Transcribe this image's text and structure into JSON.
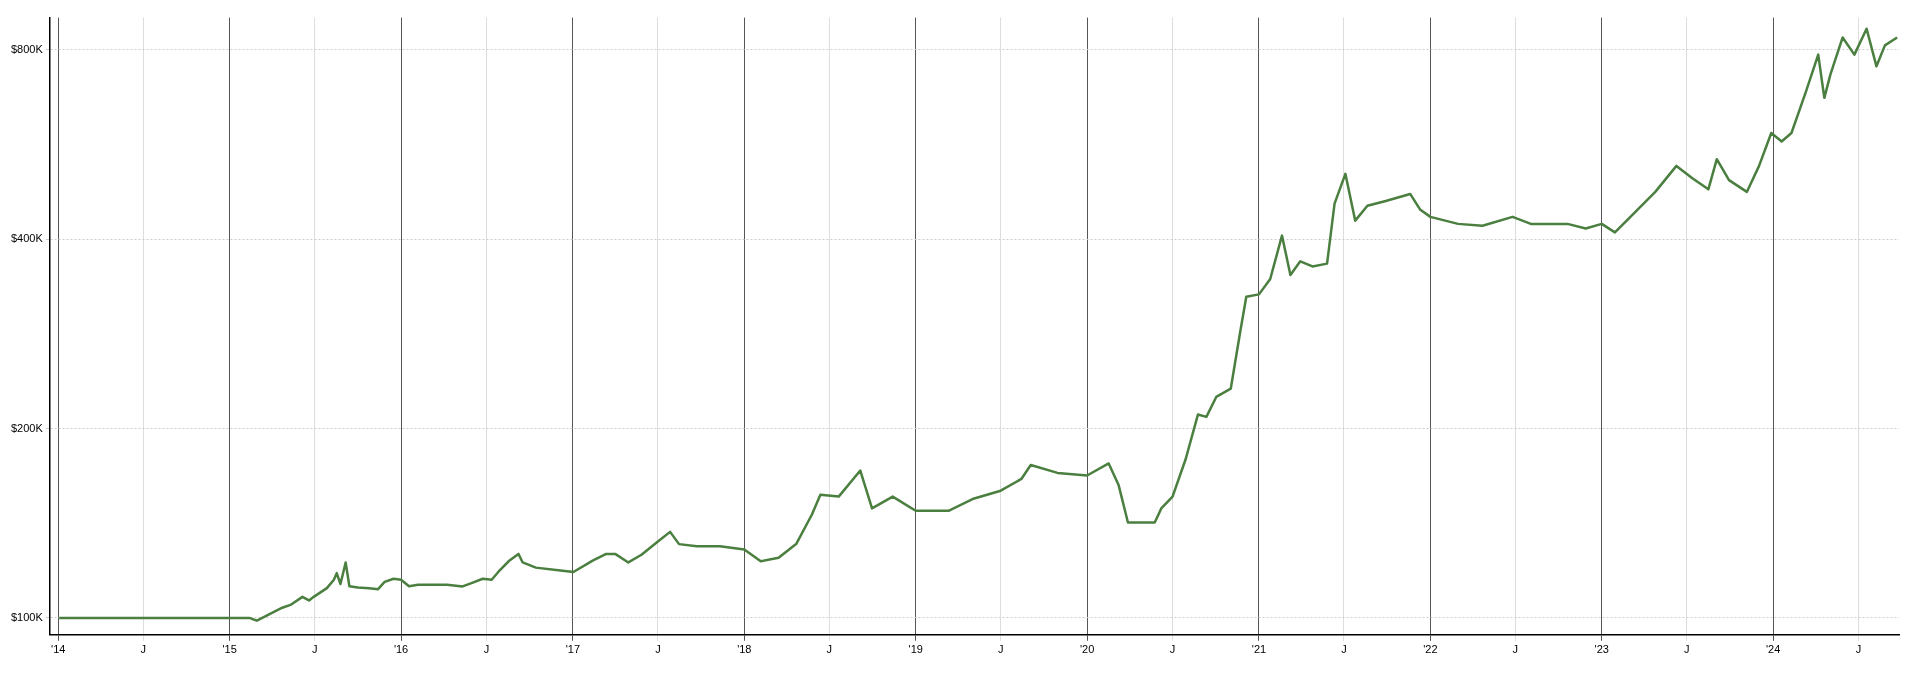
{
  "chart_data": {
    "type": "line",
    "log": "y",
    "grid": true,
    "legend": false,
    "marker": "none",
    "line_style": "solid",
    "xlim": [
      "2013-12-14",
      "2024-09-25"
    ],
    "xticks": [
      {
        "value": "2014-01-01",
        "label": "'14"
      },
      {
        "value": "2014-07-01",
        "label": "J"
      },
      {
        "value": "2015-01-01",
        "label": "'15"
      },
      {
        "value": "2015-07-01",
        "label": "J"
      },
      {
        "value": "2016-01-01",
        "label": "'16"
      },
      {
        "value": "2016-07-01",
        "label": "J"
      },
      {
        "value": "2017-01-01",
        "label": "'17"
      },
      {
        "value": "2017-07-01",
        "label": "J"
      },
      {
        "value": "2018-01-01",
        "label": "'18"
      },
      {
        "value": "2018-07-01",
        "label": "J"
      },
      {
        "value": "2019-01-01",
        "label": "'19"
      },
      {
        "value": "2019-07-01",
        "label": "J"
      },
      {
        "value": "2020-01-01",
        "label": "'20"
      },
      {
        "value": "2020-07-01",
        "label": "J"
      },
      {
        "value": "2021-01-01",
        "label": "'21"
      },
      {
        "value": "2021-07-01",
        "label": "J"
      },
      {
        "value": "2022-01-01",
        "label": "'22"
      },
      {
        "value": "2022-07-01",
        "label": "J"
      },
      {
        "value": "2023-01-01",
        "label": "'23"
      },
      {
        "value": "2023-07-01",
        "label": "J"
      },
      {
        "value": "2024-01-01",
        "label": "'24"
      },
      {
        "value": "2024-07-01",
        "label": "J"
      }
    ],
    "ylim": [
      94000,
      900000
    ],
    "yticks": [
      {
        "value": 100000,
        "label": "$100K"
      },
      {
        "value": 200000,
        "label": "$200K"
      },
      {
        "value": 400000,
        "label": "$400K"
      },
      {
        "value": 800000,
        "label": "$800K"
      }
    ],
    "series": [
      {
        "color": "#4a7f3f",
        "x": [
          "2014-01-03",
          "2015-02-12",
          "2015-02-28",
          "2015-03-27",
          "2015-04-23",
          "2015-05-12",
          "2015-06-05",
          "2015-06-19",
          "2015-06-29",
          "2015-07-27",
          "2015-08-11",
          "2015-08-17",
          "2015-08-25",
          "2015-09-05",
          "2015-09-13",
          "2015-10-01",
          "2015-10-25",
          "2015-11-13",
          "2015-11-27",
          "2015-12-16",
          "2016-01-01",
          "2016-01-18",
          "2016-02-06",
          "2016-04-08",
          "2016-05-11",
          "2016-05-30",
          "2016-06-23",
          "2016-07-12",
          "2016-07-26",
          "2016-08-19",
          "2016-09-07",
          "2016-09-16",
          "2016-10-14",
          "2016-12-01",
          "2017-01-02",
          "2017-02-13",
          "2017-03-13",
          "2017-04-01",
          "2017-04-29",
          "2017-05-27",
          "2017-07-01",
          "2017-07-27",
          "2017-08-15",
          "2017-09-22",
          "2017-11-10",
          "2018-01-01",
          "2018-02-05",
          "2018-03-15",
          "2018-04-22",
          "2018-05-25",
          "2018-06-12",
          "2018-07-21",
          "2018-09-05",
          "2018-09-30",
          "2018-11-13",
          "2019-01-01",
          "2019-03-12",
          "2019-05-02",
          "2019-07-01",
          "2019-08-14",
          "2019-09-03",
          "2019-10-30",
          "2020-01-01",
          "2020-02-16",
          "2020-03-08",
          "2020-03-28",
          "2020-05-24",
          "2020-06-07",
          "2020-07-01",
          "2020-07-29",
          "2020-08-24",
          "2020-09-11",
          "2020-10-02",
          "2020-11-02",
          "2020-11-22",
          "2020-12-05",
          "2021-01-01",
          "2021-01-25",
          "2021-02-19",
          "2021-03-09",
          "2021-03-30",
          "2021-04-25",
          "2021-05-26",
          "2021-06-11",
          "2021-07-04",
          "2021-07-25",
          "2021-08-20",
          "2021-09-28",
          "2021-11-19",
          "2021-12-10",
          "2022-01-01",
          "2022-03-01",
          "2022-04-22",
          "2022-06-25",
          "2022-08-03",
          "2022-10-20",
          "2022-11-28",
          "2023-01-01",
          "2023-01-29",
          "2023-03-03",
          "2023-04-25",
          "2023-06-09",
          "2023-07-13",
          "2023-08-16",
          "2023-09-03",
          "2023-09-29",
          "2023-11-06",
          "2023-12-02",
          "2023-12-28",
          "2024-01-19",
          "2024-02-09",
          "2024-03-11",
          "2024-04-06",
          "2024-04-19",
          "2024-05-02",
          "2024-05-28",
          "2024-06-22",
          "2024-07-18",
          "2024-08-08",
          "2024-08-26",
          "2024-09-21"
        ],
        "values": [
          100000,
          100000,
          99000,
          101400,
          103800,
          105000,
          108000,
          106600,
          108000,
          111500,
          115000,
          117800,
          113200,
          122500,
          112300,
          111800,
          111500,
          111100,
          114100,
          115400,
          115000,
          112300,
          112900,
          112900,
          112200,
          113600,
          115400,
          115000,
          118300,
          123400,
          126400,
          122500,
          120200,
          119100,
          118300,
          123400,
          126400,
          126400,
          122500,
          126000,
          132300,
          137000,
          131000,
          130000,
          130000,
          128400,
          123000,
          124600,
          131200,
          146000,
          157000,
          155900,
          171500,
          149300,
          155900,
          148000,
          148000,
          154500,
          159300,
          166300,
          175000,
          170000,
          168400,
          176000,
          162700,
          141800,
          141800,
          149300,
          155900,
          178900,
          210500,
          208700,
          224500,
          231500,
          284700,
          324000,
          326800,
          345700,
          405200,
          350900,
          368800,
          362000,
          365700,
          455500,
          508000,
          428000,
          452000,
          460000,
          472000,
          446000,
          434000,
          423000,
          420000,
          434000,
          423000,
          423000,
          416000,
          423000,
          410000,
          434000,
          475500,
          523000,
          500000,
          480000,
          536000,
          496500,
          475500,
          523000,
          590000,
          572000,
          590000,
          687000,
          786000,
          671000,
          731000,
          837000,
          786000,
          864000,
          753000,
          813000,
          837000
        ]
      }
    ]
  }
}
